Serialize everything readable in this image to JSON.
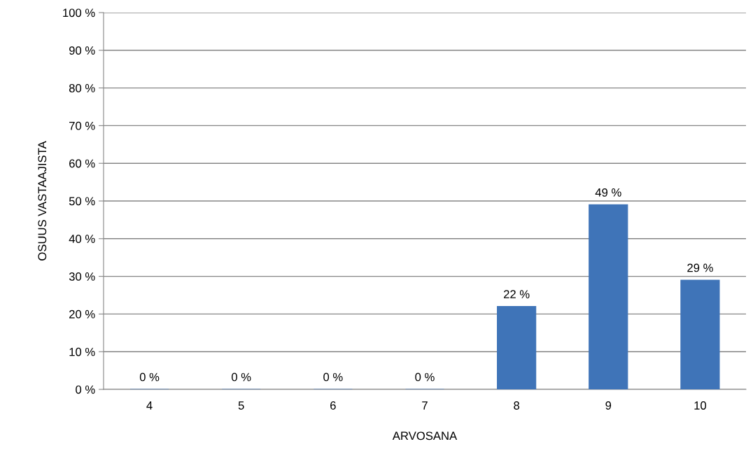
{
  "chart_data": {
    "type": "bar",
    "xlabel": "ARVOSANA",
    "ylabel": "OSUUS VASTAAJISTA",
    "categories": [
      "4",
      "5",
      "6",
      "7",
      "8",
      "9",
      "10"
    ],
    "values": [
      0,
      0,
      0,
      0,
      22,
      49,
      29
    ],
    "value_labels": [
      "0 %",
      "0 %",
      "0 %",
      "0 %",
      "22 %",
      "49 %",
      "29 %"
    ],
    "color": "#3f74b8",
    "ylim": [
      0,
      100
    ],
    "yticks": [
      {
        "value": 0,
        "label": "0 %"
      },
      {
        "value": 10,
        "label": "10 %"
      },
      {
        "value": 20,
        "label": "20 %"
      },
      {
        "value": 30,
        "label": "30 %"
      },
      {
        "value": 40,
        "label": "40 %"
      },
      {
        "value": 50,
        "label": "50 %"
      },
      {
        "value": 60,
        "label": "60 %"
      },
      {
        "value": 70,
        "label": "70 %"
      },
      {
        "value": 80,
        "label": "80 %"
      },
      {
        "value": 90,
        "label": "90 %"
      },
      {
        "value": 100,
        "label": "100 %"
      }
    ],
    "grid": "y",
    "legend": false
  }
}
